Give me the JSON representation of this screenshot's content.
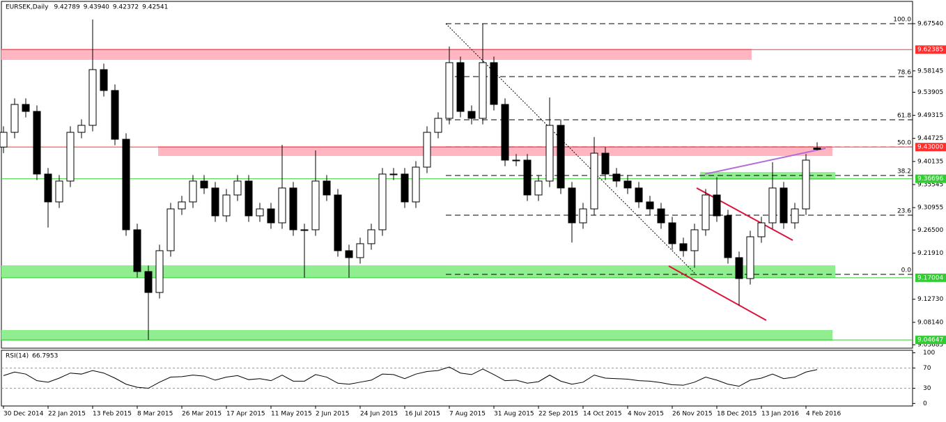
{
  "chart_data": [
    {
      "type": "candlestick",
      "title": "EURSEK,Daily",
      "header_values": [
        "9.42789",
        "9.43940",
        "9.42372",
        "9.42541"
      ],
      "xlim": [
        -0.75,
        326.25
      ],
      "ylim": [
        9.03,
        9.7197
      ],
      "x": [
        0,
        4,
        8,
        12,
        16,
        20,
        24,
        28,
        32,
        36,
        40,
        44,
        48,
        52,
        56,
        60,
        64,
        68,
        72,
        76,
        80,
        84,
        88,
        92,
        96,
        100,
        104,
        108,
        112,
        116,
        120,
        124,
        128,
        132,
        136,
        140,
        144,
        148,
        152,
        156,
        160,
        164,
        168,
        172,
        176,
        180,
        184,
        188,
        192,
        196,
        200,
        204,
        208,
        212,
        216,
        220,
        224,
        228,
        232,
        236,
        240,
        244,
        248,
        252,
        256,
        260,
        264,
        268,
        272,
        276,
        280,
        284,
        288,
        292
      ],
      "open": [
        9.43,
        9.4593,
        9.5148,
        9.5009,
        9.3763,
        9.3209,
        9.3624,
        9.4593,
        9.4732,
        9.584,
        9.5425,
        9.4455,
        9.2655,
        9.1824,
        9.1408,
        9.2239,
        9.307,
        9.3209,
        9.3624,
        9.3486,
        9.2932,
        9.3347,
        9.3624,
        9.2932,
        9.307,
        9.2793,
        9.3486,
        9.2655,
        9.2655,
        9.3624,
        9.3347,
        9.2239,
        9.2101,
        9.2378,
        9.2655,
        9.3763,
        9.3763,
        9.3209,
        9.3901,
        9.4593,
        9.4871,
        9.5979,
        9.5009,
        9.4871,
        9.5979,
        9.5148,
        9.404,
        9.404,
        9.3347,
        9.3624,
        9.4732,
        9.3486,
        9.2793,
        9.307,
        9.4178,
        9.3763,
        9.3624,
        9.3486,
        9.3209,
        9.307,
        9.2793,
        9.2378,
        9.2239,
        9.2655,
        9.3347,
        9.2932,
        9.2101,
        9.1685,
        9.2516,
        9.2793,
        9.3486,
        9.2793,
        9.307,
        9.4279
      ],
      "high": [
        9.4713,
        9.5268,
        9.5268,
        9.5129,
        9.3883,
        9.3744,
        9.4713,
        9.4852,
        9.6837,
        9.596,
        9.5545,
        9.4575,
        9.2775,
        9.1944,
        9.2359,
        9.319,
        9.3329,
        9.3744,
        9.3744,
        9.3606,
        9.3467,
        9.3744,
        9.3744,
        9.319,
        9.319,
        9.4344,
        9.3606,
        9.2775,
        9.4233,
        9.3744,
        9.3467,
        9.2359,
        9.2498,
        9.2775,
        9.3883,
        9.3883,
        9.3883,
        9.4021,
        9.4713,
        9.4991,
        9.63,
        9.6099,
        9.5129,
        9.6754,
        9.6099,
        9.5268,
        9.416,
        9.416,
        9.3744,
        9.5286,
        9.4852,
        9.3606,
        9.319,
        9.45,
        9.4298,
        9.3883,
        9.3744,
        9.3606,
        9.3329,
        9.319,
        9.2913,
        9.2498,
        9.2775,
        9.3467,
        9.37,
        9.3052,
        9.2221,
        9.2636,
        9.2913,
        9.4,
        9.3606,
        9.319,
        9.416,
        9.4394
      ],
      "low": [
        9.418,
        9.4473,
        9.4889,
        9.3643,
        9.27,
        9.3089,
        9.3504,
        9.4473,
        9.4612,
        9.5305,
        9.4335,
        9.2535,
        9.1704,
        9.0465,
        9.1288,
        9.2119,
        9.295,
        9.3089,
        9.3366,
        9.2812,
        9.2812,
        9.3227,
        9.2812,
        9.2812,
        9.2673,
        9.2673,
        9.2535,
        9.17,
        9.2535,
        9.3227,
        9.2119,
        9.17,
        9.1981,
        9.2258,
        9.2535,
        9.3643,
        9.3089,
        9.3089,
        9.3781,
        9.4473,
        9.4751,
        9.4889,
        9.4751,
        9.4751,
        9.5028,
        9.392,
        9.392,
        9.3227,
        9.3227,
        9.3504,
        9.3366,
        9.24,
        9.2673,
        9.295,
        9.3643,
        9.3504,
        9.3366,
        9.3089,
        9.295,
        9.2673,
        9.2258,
        9.2119,
        9.19,
        9.2535,
        9.2812,
        9.1981,
        9.115,
        9.1565,
        9.2396,
        9.2673,
        9.2673,
        9.2673,
        9.295,
        9.4237
      ],
      "close": [
        9.4593,
        9.5148,
        9.5009,
        9.3763,
        9.3209,
        9.3624,
        9.4593,
        9.4732,
        9.584,
        9.5425,
        9.4455,
        9.2655,
        9.1824,
        9.1408,
        9.2239,
        9.307,
        9.3209,
        9.3624,
        9.3486,
        9.2932,
        9.3347,
        9.3624,
        9.2932,
        9.307,
        9.2793,
        9.3486,
        9.2655,
        9.2655,
        9.3624,
        9.3347,
        9.2239,
        9.2101,
        9.2378,
        9.2655,
        9.3763,
        9.3763,
        9.3209,
        9.3901,
        9.4593,
        9.4871,
        9.5979,
        9.5009,
        9.4871,
        9.5979,
        9.5148,
        9.404,
        9.404,
        9.3347,
        9.3624,
        9.4732,
        9.3486,
        9.2793,
        9.307,
        9.4178,
        9.3763,
        9.3624,
        9.3486,
        9.3209,
        9.307,
        9.2793,
        9.2378,
        9.2239,
        9.2655,
        9.3347,
        9.2932,
        9.2101,
        9.1685,
        9.2516,
        9.2793,
        9.3486,
        9.2793,
        9.307,
        9.404,
        9.4254
      ],
      "yticks": [
        {
          "value": 9.6754,
          "label": "9.67540"
        },
        9.58145,
        9.53905,
        9.49315,
        9.44725,
        9.40135,
        9.35545,
        9.30955,
        {
          "value": 9.265,
          "label": "9.26500"
        },
        {
          "value": 9.2191,
          "label": "9.21910"
        },
        {
          "value": 9.1273,
          "label": "9.12730"
        },
        {
          "value": 9.0814,
          "label": "9.08140"
        },
        9.03685
      ],
      "xticks": [
        {
          "value": 0,
          "label": "30 Dec 2014"
        },
        {
          "value": 16,
          "label": "22 Jan 2015"
        },
        {
          "value": 32,
          "label": "13 Feb 2015"
        },
        {
          "value": 48,
          "label": "8 Mar 2015"
        },
        {
          "value": 64,
          "label": "26 Mar 2015"
        },
        {
          "value": 80,
          "label": "17 Apr 2015"
        },
        {
          "value": 96,
          "label": "11 May 2015"
        },
        {
          "value": 112,
          "label": "2 Jun 2015"
        },
        {
          "value": 128,
          "label": "24 Jun 2015"
        },
        {
          "value": 144,
          "label": "16 Jul 2015"
        },
        {
          "value": 160,
          "label": "7 Aug 2015"
        },
        {
          "value": 176,
          "label": "31 Aug 2015"
        },
        {
          "value": 192,
          "label": "22 Sep 2015"
        },
        {
          "value": 208,
          "label": "14 Oct 2015"
        },
        {
          "value": 224,
          "label": "4 Nov 2015"
        },
        {
          "value": 240,
          "label": "26 Nov 2015"
        },
        {
          "value": 256,
          "label": "18 Dec 2015"
        },
        {
          "value": 272,
          "label": "13 Jan 2016"
        },
        {
          "value": 288,
          "label": "4 Feb 2016"
        }
      ],
      "zones": [
        {
          "color": "#ffb6c1",
          "x": [
            -0.75,
            268.5
          ],
          "y": [
            9.6255,
            9.6034
          ]
        },
        {
          "color": "#ffb6c1",
          "x": [
            55.5,
            297.5
          ],
          "y": [
            9.4317,
            9.4123
          ]
        },
        {
          "color": "#90ee90",
          "x": [
            250,
            298.5
          ],
          "y": [
            9.3804,
            9.3652
          ]
        },
        {
          "color": "#90ee90",
          "x": [
            -0.75,
            298.5
          ],
          "y": [
            9.1948,
            9.1699
          ]
        },
        {
          "color": "#90ee90",
          "x": [
            -0.75,
            297.5
          ],
          "y": [
            9.066,
            9.0453
          ]
        }
      ],
      "levels": [
        {
          "value": 9.62385,
          "label": "9.62385",
          "color": "#ff3030"
        },
        {
          "value": 9.43,
          "label": "9.43000",
          "color": "#ff3030"
        },
        {
          "value": 9.36696,
          "label": "9.36696",
          "color": "#32cd32"
        },
        {
          "value": 9.17004,
          "label": "9.17004",
          "color": "#32cd32"
        },
        {
          "value": 9.04647,
          "label": "9.04647",
          "color": "#32cd32"
        }
      ],
      "fib": {
        "x": [
          158.75,
          326.25
        ],
        "levels": [
          {
            "value": 9.6754,
            "label": "100.0"
          },
          {
            "value": 9.5702,
            "label": "78.6"
          },
          {
            "value": 9.4843,
            "label": "61.8"
          },
          {
            "value": 9.4303,
            "label": "50.0"
          },
          {
            "value": 9.3735,
            "label": "38.2"
          },
          {
            "value": 9.2946,
            "label": "23.6"
          },
          {
            "value": 9.1768,
            "label": "0.0"
          }
        ]
      },
      "lines": [
        {
          "color": "#000000",
          "dash": true,
          "x": [
            158.75,
            248.75
          ],
          "y": [
            9.6754,
            9.1754
          ]
        },
        {
          "color": "#dc143c",
          "dash": false,
          "x": [
            248.75,
            283.25
          ],
          "y": [
            9.3486,
            9.2447
          ]
        },
        {
          "color": "#dc143c",
          "dash": false,
          "x": [
            238.75,
            273.75
          ],
          "y": [
            9.1934,
            9.0854
          ]
        },
        {
          "color": "#b36bd6",
          "dash": false,
          "x": [
            251.75,
            295
          ],
          "y": [
            9.3763,
            9.4275
          ]
        }
      ]
    },
    {
      "type": "line",
      "title": "RSI(14)",
      "current": 66.7953,
      "ylim": [
        -5,
        105
      ],
      "yticks": [
        100,
        70,
        30,
        0
      ],
      "levels": [
        70,
        30
      ],
      "series": [
        {
          "color": "#000000",
          "values": [
            55,
            62,
            58,
            45,
            42,
            50,
            60,
            58,
            65,
            60,
            50,
            38,
            32,
            30,
            42,
            52,
            53,
            56,
            54,
            46,
            52,
            55,
            47,
            49,
            45,
            56,
            44,
            44,
            57,
            52,
            40,
            38,
            42,
            46,
            58,
            57,
            49,
            58,
            63,
            65,
            72,
            60,
            57,
            68,
            57,
            45,
            46,
            40,
            43,
            56,
            44,
            38,
            42,
            56,
            50,
            49,
            48,
            45,
            44,
            41,
            37,
            36,
            42,
            52,
            46,
            38,
            34,
            46,
            50,
            58,
            49,
            52,
            62,
            66.7953
          ]
        }
      ]
    }
  ]
}
